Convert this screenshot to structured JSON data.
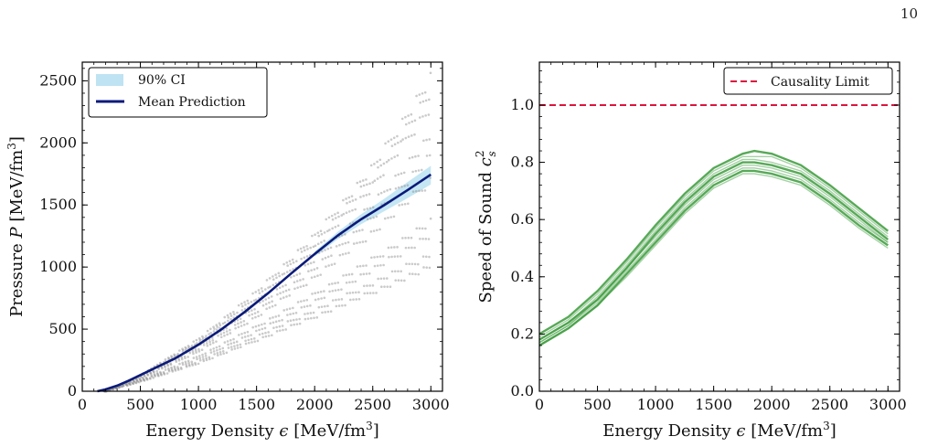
{
  "page_number": "10",
  "chart_data": [
    {
      "type": "scatter",
      "xlabel": "Energy Density ϵ [MeV/fm³]",
      "ylabel": "Pressure P [MeV/fm³]",
      "xlim": [
        0,
        3100
      ],
      "ylim": [
        0,
        2650
      ],
      "xticks": [
        0,
        500,
        1000,
        1500,
        2000,
        2500,
        3000
      ],
      "yticks": [
        0,
        500,
        1000,
        1500,
        2000,
        2500
      ],
      "legend": {
        "placement": "top-left",
        "entries": [
          "90% CI",
          "Mean Prediction"
        ]
      },
      "series": [
        {
          "name": "Mean Prediction",
          "color": "#0a1a7a",
          "x": [
            130,
            200,
            300,
            400,
            500,
            600,
            800,
            1000,
            1200,
            1400,
            1600,
            1800,
            2000,
            2200,
            2400,
            2600,
            2800,
            3000
          ],
          "y": [
            0,
            15,
            45,
            85,
            130,
            175,
            265,
            375,
            500,
            640,
            790,
            950,
            1105,
            1255,
            1385,
            1500,
            1620,
            1745
          ]
        },
        {
          "name": "90% CI",
          "color": "#bfe3f2",
          "x": [
            2000,
            2200,
            2400,
            2600,
            2800,
            3000
          ],
          "lower": [
            1085,
            1225,
            1345,
            1450,
            1555,
            1665
          ],
          "upper": [
            1125,
            1285,
            1425,
            1550,
            1685,
            1815
          ]
        }
      ],
      "scatter_samples": [
        {
          "color": "#8a8a8a",
          "x": [
            200,
            500,
            1000,
            1500,
            2000,
            2500,
            3000
          ],
          "y": [
            0,
            130,
            420,
            800,
            1250,
            1800,
            2520
          ]
        },
        {
          "color": "#8a8a8a",
          "x": [
            200,
            500,
            1000,
            1500,
            2000,
            2500,
            3000
          ],
          "y": [
            0,
            120,
            390,
            730,
            1150,
            1650,
            2300
          ]
        },
        {
          "color": "#8a8a8a",
          "x": [
            200,
            500,
            1000,
            1500,
            2000,
            2500,
            3000
          ],
          "y": [
            0,
            125,
            400,
            760,
            1200,
            1720,
            2400
          ]
        },
        {
          "color": "#8a8a8a",
          "x": [
            200,
            500,
            1000,
            1500,
            2000,
            2500,
            3000
          ],
          "y": [
            0,
            110,
            360,
            680,
            1060,
            1500,
            2050
          ]
        },
        {
          "color": "#8a8a8a",
          "x": [
            200,
            500,
            1000,
            1500,
            2000,
            2500,
            3000
          ],
          "y": [
            0,
            105,
            340,
            640,
            990,
            1400,
            1900
          ]
        },
        {
          "color": "#8a8a8a",
          "x": [
            200,
            500,
            1000,
            1500,
            2000,
            2500,
            3000
          ],
          "y": [
            0,
            100,
            320,
            600,
            920,
            1280,
            1700
          ]
        },
        {
          "color": "#8a8a8a",
          "x": [
            200,
            500,
            1000,
            1500,
            2000,
            2500,
            3000
          ],
          "y": [
            0,
            90,
            280,
            520,
            780,
            1060,
            1360
          ]
        },
        {
          "color": "#8a8a8a",
          "x": [
            200,
            500,
            1000,
            1500,
            2000,
            2500,
            3000
          ],
          "y": [
            0,
            85,
            260,
            480,
            720,
            980,
            1260
          ]
        },
        {
          "color": "#8a8a8a",
          "x": [
            200,
            500,
            1000,
            1500,
            2000,
            2500,
            3000
          ],
          "y": [
            0,
            80,
            240,
            440,
            650,
            870,
            1100
          ]
        },
        {
          "color": "#8a8a8a",
          "x": [
            200,
            500,
            1000,
            1500,
            2000,
            2500,
            3000
          ],
          "y": [
            0,
            75,
            225,
            410,
            600,
            800,
            1000
          ]
        }
      ]
    },
    {
      "type": "line",
      "xlabel": "Energy Density ϵ [MeV/fm³]",
      "ylabel": "Speed of Sound c²ₛ",
      "xlim": [
        0,
        3100
      ],
      "ylim": [
        0,
        1.15
      ],
      "xticks": [
        0,
        500,
        1000,
        1500,
        2000,
        2500,
        3000
      ],
      "yticks": [
        0.0,
        0.2,
        0.4,
        0.6,
        0.8,
        1.0
      ],
      "ytick_labels": [
        "0.0",
        "0.2",
        "0.4",
        "0.6",
        "0.8",
        "1.0"
      ],
      "legend": {
        "placement": "top-right",
        "entries": [
          "Causality Limit"
        ]
      },
      "causality_limit": {
        "name": "Causality Limit",
        "y": 1.0,
        "color": "#dc143c"
      },
      "curve_color": "#3a9a3a",
      "x": [
        0,
        250,
        500,
        750,
        1000,
        1250,
        1500,
        1750,
        1850,
        2000,
        2250,
        2500,
        2750,
        3000
      ],
      "series": [
        {
          "values": [
            0.2,
            0.26,
            0.35,
            0.46,
            0.58,
            0.69,
            0.78,
            0.83,
            0.84,
            0.83,
            0.79,
            0.72,
            0.64,
            0.56
          ]
        },
        {
          "values": [
            0.19,
            0.25,
            0.34,
            0.45,
            0.57,
            0.68,
            0.77,
            0.82,
            0.82,
            0.82,
            0.78,
            0.71,
            0.63,
            0.55
          ]
        },
        {
          "values": [
            0.18,
            0.24,
            0.33,
            0.44,
            0.56,
            0.67,
            0.76,
            0.81,
            0.81,
            0.8,
            0.77,
            0.7,
            0.62,
            0.54
          ]
        },
        {
          "values": [
            0.18,
            0.24,
            0.32,
            0.43,
            0.55,
            0.66,
            0.75,
            0.8,
            0.8,
            0.79,
            0.76,
            0.69,
            0.61,
            0.53
          ]
        },
        {
          "values": [
            0.17,
            0.23,
            0.32,
            0.43,
            0.54,
            0.65,
            0.74,
            0.79,
            0.79,
            0.78,
            0.75,
            0.68,
            0.6,
            0.52
          ]
        },
        {
          "values": [
            0.17,
            0.23,
            0.31,
            0.42,
            0.53,
            0.64,
            0.73,
            0.78,
            0.78,
            0.77,
            0.74,
            0.67,
            0.59,
            0.52
          ]
        },
        {
          "values": [
            0.16,
            0.22,
            0.3,
            0.41,
            0.52,
            0.63,
            0.72,
            0.77,
            0.77,
            0.76,
            0.73,
            0.66,
            0.58,
            0.51
          ]
        },
        {
          "values": [
            0.16,
            0.22,
            0.3,
            0.4,
            0.51,
            0.62,
            0.71,
            0.76,
            0.76,
            0.75,
            0.72,
            0.65,
            0.57,
            0.5
          ]
        }
      ]
    }
  ]
}
